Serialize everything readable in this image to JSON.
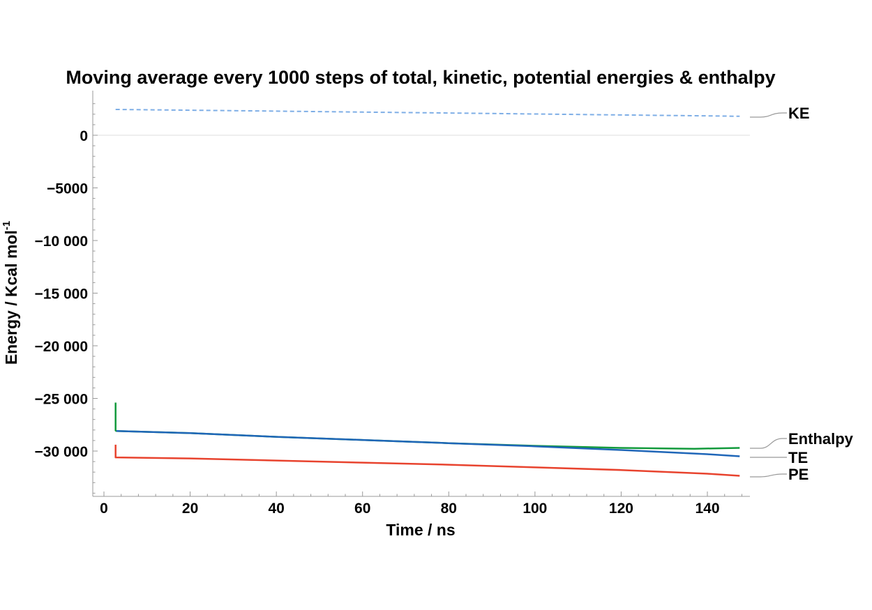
{
  "chart_data": {
    "type": "line",
    "title": "Moving average every 1000 steps of total, kinetic, potential energies & enthalpy",
    "xlabel": "Time / ns",
    "ylabel": "Energy / Kcal mol",
    "ylabel_superscript": "-1",
    "xlim": [
      -3,
      150
    ],
    "ylim": [
      -34000,
      4000
    ],
    "x_ticks": [
      0,
      20,
      40,
      60,
      80,
      100,
      120,
      140
    ],
    "x_tick_labels": [
      "0",
      "20",
      "40",
      "60",
      "80",
      "100",
      "120",
      "140"
    ],
    "y_ticks": [
      0,
      -5000,
      -10000,
      -15000,
      -20000,
      -25000,
      -30000
    ],
    "y_tick_labels": [
      "0",
      "−5000",
      "−10 000",
      "−15 000",
      "−20 000",
      "−25 000",
      "−30 000"
    ],
    "grid": false,
    "zero_line": true,
    "legend": "inline labels at right end of each series",
    "series": [
      {
        "name": "KE",
        "color": "#7eaee6",
        "dashed": true,
        "x": [
          2.7,
          20,
          40,
          60,
          80,
          100,
          120,
          140,
          147.5
        ],
        "y": [
          2450,
          2380,
          2290,
          2200,
          2110,
          2020,
          1930,
          1840,
          1800
        ]
      },
      {
        "name": "Enthalpy",
        "color": "#129a3c",
        "dashed": false,
        "x": [
          2.7,
          2.7,
          2.9,
          20,
          40,
          60,
          80,
          100,
          120,
          137,
          147.5
        ],
        "y": [
          -25400,
          -28050,
          -28100,
          -28300,
          -28650,
          -28950,
          -29250,
          -29500,
          -29700,
          -29780,
          -29700
        ]
      },
      {
        "name": "TE",
        "color": "#1f66b8",
        "dashed": false,
        "x": [
          2.9,
          20,
          40,
          60,
          80,
          100,
          120,
          140,
          147.5
        ],
        "y": [
          -28100,
          -28300,
          -28650,
          -28950,
          -29250,
          -29550,
          -29900,
          -30300,
          -30500
        ]
      },
      {
        "name": "PE",
        "color": "#e8432e",
        "dashed": false,
        "x": [
          2.7,
          2.7,
          2.9,
          20,
          40,
          60,
          80,
          100,
          120,
          140,
          147.5
        ],
        "y": [
          -29400,
          -30600,
          -30600,
          -30700,
          -30900,
          -31100,
          -31300,
          -31550,
          -31800,
          -32150,
          -32350
        ]
      }
    ]
  }
}
